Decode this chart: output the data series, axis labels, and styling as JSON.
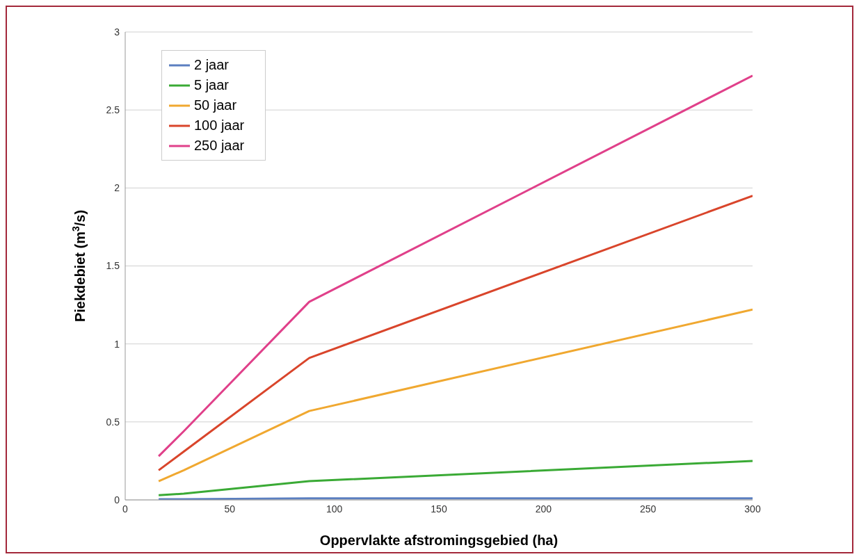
{
  "chart_data": {
    "type": "line",
    "xlabel": "Oppervlakte afstromingsgebied (ha)",
    "ylabel": "Piekdebiet  (m$^{3}$/s)",
    "x": [
      16,
      28,
      88,
      300
    ],
    "series": [
      {
        "name": "2 jaar",
        "color": "#5b7fc0",
        "values": [
          0.005,
          0.005,
          0.01,
          0.01
        ]
      },
      {
        "name": "5 jaar",
        "color": "#3aaa35",
        "values": [
          0.03,
          0.04,
          0.12,
          0.25
        ]
      },
      {
        "name": "50 jaar",
        "color": "#f0a830",
        "values": [
          0.12,
          0.19,
          0.57,
          1.22
        ]
      },
      {
        "name": "100 jaar",
        "color": "#d9452b",
        "values": [
          0.19,
          0.31,
          0.91,
          1.95
        ]
      },
      {
        "name": "250 jaar",
        "color": "#e0408a",
        "values": [
          0.28,
          0.44,
          1.27,
          2.72
        ]
      }
    ],
    "xlim": [
      0,
      300
    ],
    "xticks": [
      0,
      50,
      100,
      150,
      200,
      250,
      300
    ],
    "ylim": [
      0,
      3
    ],
    "yticks": [
      0,
      0.5,
      1,
      1.5,
      2,
      2.5,
      3
    ],
    "grid": "y",
    "legend": "top left",
    "marker": "none",
    "line_style": "solid"
  }
}
